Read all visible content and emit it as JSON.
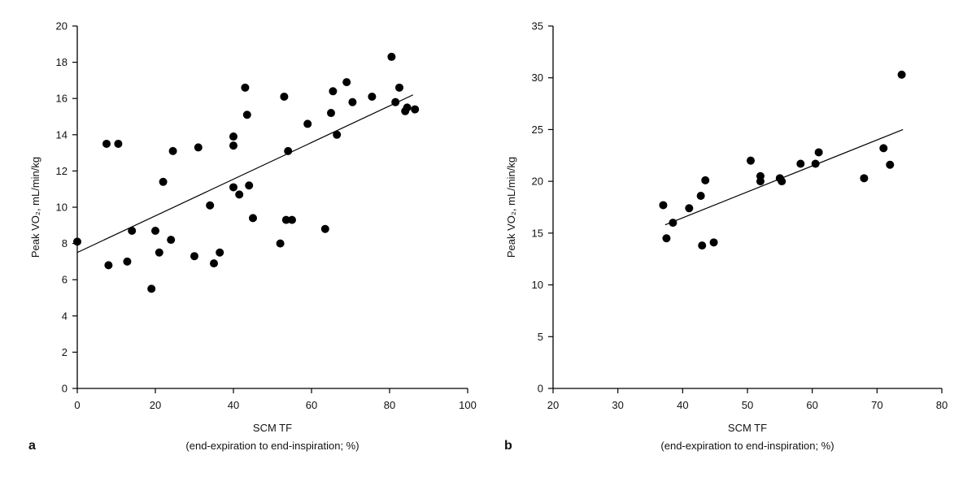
{
  "chart_data": [
    {
      "type": "scatter",
      "panel_label": "a",
      "xlabel": "SCM TF",
      "xlabel_line2": "(end-expiration to end-inspiration; %)",
      "ylabel": "Peak VO₂, mL/min/kg",
      "xlim": [
        0,
        100
      ],
      "ylim": [
        0,
        20
      ],
      "xticks": [
        0,
        20,
        40,
        60,
        80,
        100
      ],
      "yticks": [
        0,
        2,
        4,
        6,
        8,
        10,
        12,
        14,
        16,
        18,
        20
      ],
      "grid": false,
      "marker_color": "#000000",
      "points": [
        [
          0,
          8.1
        ],
        [
          7.5,
          13.5
        ],
        [
          8,
          6.8
        ],
        [
          10.5,
          13.5
        ],
        [
          12.8,
          7.0
        ],
        [
          14,
          8.7
        ],
        [
          19,
          5.5
        ],
        [
          20,
          8.7
        ],
        [
          21,
          7.5
        ],
        [
          22,
          11.4
        ],
        [
          24,
          8.2
        ],
        [
          24.5,
          13.1
        ],
        [
          30,
          7.3
        ],
        [
          31,
          13.3
        ],
        [
          34,
          10.1
        ],
        [
          35,
          6.9
        ],
        [
          36.5,
          7.5
        ],
        [
          40,
          13.9
        ],
        [
          40,
          13.4
        ],
        [
          40,
          11.1
        ],
        [
          41.5,
          10.7
        ],
        [
          43,
          16.6
        ],
        [
          43.5,
          15.1
        ],
        [
          44,
          11.2
        ],
        [
          45,
          9.4
        ],
        [
          52,
          8.0
        ],
        [
          53,
          16.1
        ],
        [
          53.5,
          9.3
        ],
        [
          54,
          13.1
        ],
        [
          55,
          9.3
        ],
        [
          59,
          14.6
        ],
        [
          63.5,
          8.8
        ],
        [
          65,
          15.2
        ],
        [
          65.5,
          16.4
        ],
        [
          66.5,
          14.0
        ],
        [
          69,
          16.9
        ],
        [
          70.5,
          15.8
        ],
        [
          75.5,
          16.1
        ],
        [
          80.5,
          18.3
        ],
        [
          81.5,
          15.8
        ],
        [
          82.5,
          16.6
        ],
        [
          84,
          15.3
        ],
        [
          84.5,
          15.5
        ],
        [
          86.5,
          15.4
        ]
      ],
      "fit_line": [
        [
          0,
          7.5
        ],
        [
          86,
          16.2
        ]
      ]
    },
    {
      "type": "scatter",
      "panel_label": "b",
      "xlabel": "SCM TF",
      "xlabel_line2": "(end-expiration to end-inspiration; %)",
      "ylabel": "Peak VO₂, mL/min/kg",
      "xlim": [
        20,
        80
      ],
      "ylim": [
        0,
        35
      ],
      "xticks": [
        20,
        30,
        40,
        50,
        60,
        70,
        80
      ],
      "yticks": [
        0,
        5,
        10,
        15,
        20,
        25,
        30,
        35
      ],
      "grid": false,
      "marker_color": "#000000",
      "points": [
        [
          37,
          17.7
        ],
        [
          37.5,
          14.5
        ],
        [
          38.5,
          16.0
        ],
        [
          41,
          17.4
        ],
        [
          42.8,
          18.6
        ],
        [
          43,
          13.8
        ],
        [
          43.5,
          20.1
        ],
        [
          44.8,
          14.1
        ],
        [
          50.5,
          22.0
        ],
        [
          52,
          20.5
        ],
        [
          52,
          20.0
        ],
        [
          55,
          20.3
        ],
        [
          55.3,
          20.0
        ],
        [
          58.2,
          21.7
        ],
        [
          60.5,
          21.7
        ],
        [
          61,
          22.8
        ],
        [
          68,
          20.3
        ],
        [
          71,
          23.2
        ],
        [
          72,
          21.6
        ],
        [
          73.8,
          30.3
        ]
      ],
      "fit_line": [
        [
          37.3,
          15.8
        ],
        [
          74,
          25.0
        ]
      ]
    }
  ]
}
